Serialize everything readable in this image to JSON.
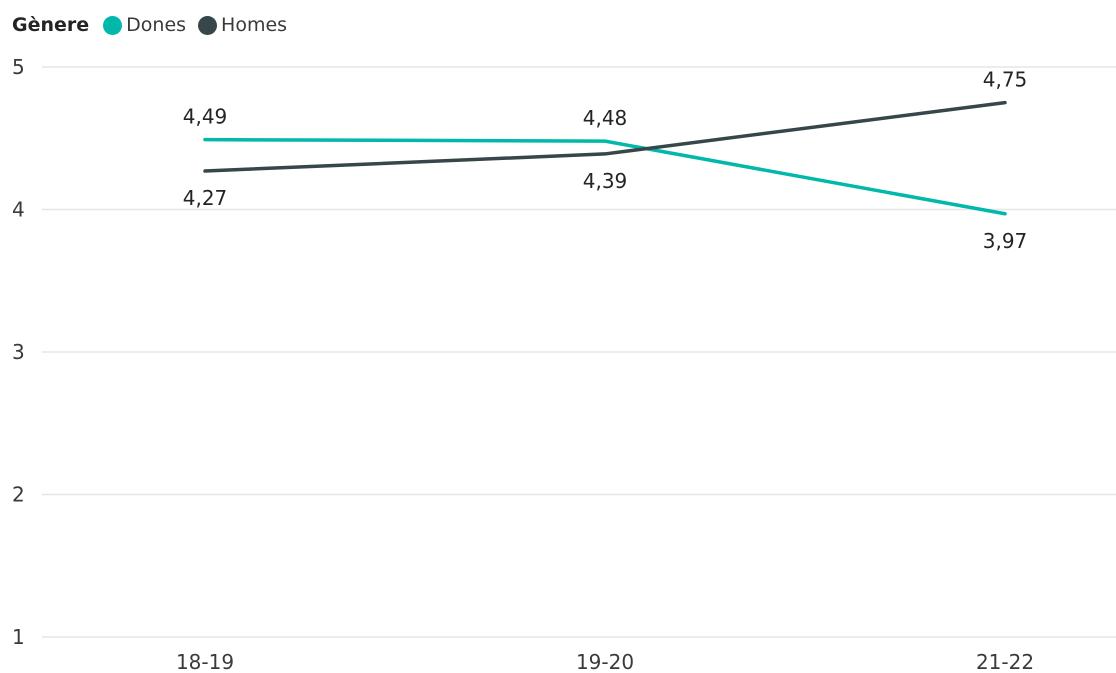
{
  "legend": {
    "title": "Gènere",
    "items": [
      {
        "label": "Dones",
        "color": "#01B8AA"
      },
      {
        "label": "Homes",
        "color": "#374649"
      }
    ]
  },
  "chart_data": {
    "type": "line",
    "categories": [
      "18-19",
      "19-20",
      "21-22"
    ],
    "series": [
      {
        "name": "Dones",
        "color": "#01B8AA",
        "values": [
          4.49,
          4.48,
          3.97
        ],
        "labels": [
          "4,49",
          "4,48",
          "3,97"
        ]
      },
      {
        "name": "Homes",
        "color": "#374649",
        "values": [
          4.27,
          4.39,
          4.75
        ],
        "labels": [
          "4,27",
          "4,39",
          "4,75"
        ]
      }
    ],
    "title": "",
    "xlabel": "",
    "ylabel": "",
    "ylim": [
      1,
      5
    ],
    "yticks": [
      1,
      2,
      3,
      4,
      5
    ],
    "grid": true,
    "legend_position": "top-left"
  }
}
